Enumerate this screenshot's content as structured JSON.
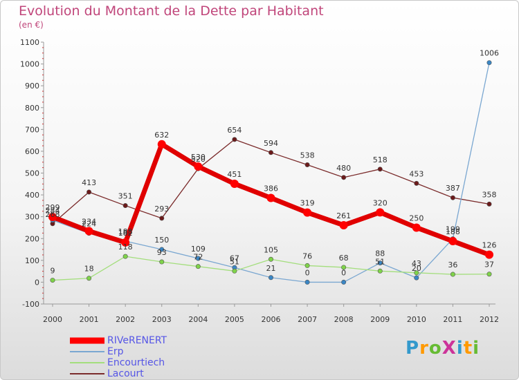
{
  "header": {
    "title": "Evolution du Montant de la Dette par Habitant",
    "subtitle": "(en €)"
  },
  "logo": {
    "text": "ProXiti"
  },
  "chart_data": {
    "type": "line",
    "title": "Evolution du Montant de la Dette par Habitant",
    "subtitle": "(en €)",
    "x": [
      "2000",
      "2001",
      "2002",
      "2003",
      "2004",
      "2005",
      "2006",
      "2007",
      "2008",
      "2009",
      "2010",
      "2011",
      "2012"
    ],
    "ylim": [
      -100,
      1100
    ],
    "yticks": [
      "-100",
      "0",
      "100",
      "200",
      "300",
      "400",
      "500",
      "600",
      "700",
      "800",
      "900",
      "1000",
      "1100"
    ],
    "grid": false,
    "legend_position": "bottom-left",
    "series": [
      {
        "name": "RIVeRENERT",
        "color": "#ff0000",
        "values": [
          299,
          234,
          182,
          632,
          530,
          451,
          386,
          319,
          261,
          320,
          250,
          188,
          126
        ],
        "labels": [
          "299",
          "234",
          "182",
          "632",
          "530",
          "451",
          "386",
          "319",
          "261",
          "320",
          "250",
          "188",
          "126"
        ]
      },
      {
        "name": "Erp",
        "color": "#7aa7d1",
        "values": [
          284,
          224,
          188,
          150,
          109,
          67,
          21,
          0,
          0,
          88,
          20,
          199,
          1006
        ],
        "labels": [
          "284",
          "224",
          "188",
          "150",
          "109",
          "67",
          "21",
          "0",
          "0",
          "88",
          "20",
          "199",
          "1006"
        ]
      },
      {
        "name": "Encourtiech",
        "color": "#a3de7c",
        "values": [
          9,
          18,
          118,
          93,
          72,
          51,
          105,
          76,
          68,
          51,
          43,
          36,
          37
        ],
        "labels": [
          "9",
          "18",
          "118",
          "93",
          "72",
          "51",
          "105",
          "76",
          "68",
          "51",
          "43",
          "36",
          "37"
        ]
      },
      {
        "name": "Lacourt",
        "color": "#7a2a2a",
        "values": [
          268,
          413,
          351,
          293,
          520,
          654,
          594,
          538,
          480,
          518,
          453,
          387,
          358
        ],
        "labels": [
          "268",
          "413",
          "351",
          "293",
          "520",
          "654",
          "594",
          "538",
          "480",
          "518",
          "453",
          "387",
          "358"
        ]
      }
    ]
  }
}
